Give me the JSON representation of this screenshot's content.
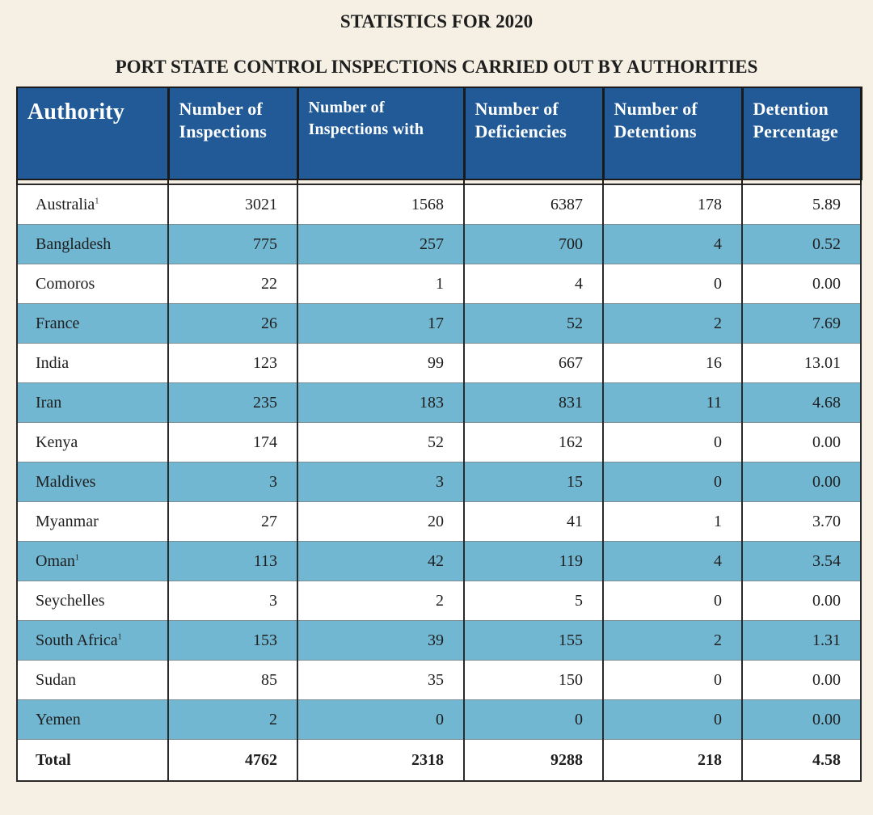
{
  "title": "STATISTICS FOR 2020",
  "subtitle": "PORT STATE CONTROL INSPECTIONS CARRIED OUT BY AUTHORITIES",
  "headers": [
    [
      "Authority"
    ],
    [
      "Number of",
      "Inspections"
    ],
    [
      "Number of",
      "Inspections with"
    ],
    [
      "Number of",
      "Deficiencies"
    ],
    [
      "Number of",
      "Detentions"
    ],
    [
      "Detention",
      "Percentage"
    ]
  ],
  "rows": [
    {
      "authority": "Australia",
      "note": "1",
      "inspections": "3021",
      "with_deficiencies": "1568",
      "deficiencies": "6387",
      "detentions": "178",
      "percentage": "5.89"
    },
    {
      "authority": "Bangladesh",
      "note": "",
      "inspections": "775",
      "with_deficiencies": "257",
      "deficiencies": "700",
      "detentions": "4",
      "percentage": "0.52"
    },
    {
      "authority": "Comoros",
      "note": "",
      "inspections": "22",
      "with_deficiencies": "1",
      "deficiencies": "4",
      "detentions": "0",
      "percentage": "0.00"
    },
    {
      "authority": "France",
      "note": "",
      "inspections": "26",
      "with_deficiencies": "17",
      "deficiencies": "52",
      "detentions": "2",
      "percentage": "7.69"
    },
    {
      "authority": "India",
      "note": "",
      "inspections": "123",
      "with_deficiencies": "99",
      "deficiencies": "667",
      "detentions": "16",
      "percentage": "13.01"
    },
    {
      "authority": "Iran",
      "note": "",
      "inspections": "235",
      "with_deficiencies": "183",
      "deficiencies": "831",
      "detentions": "11",
      "percentage": "4.68"
    },
    {
      "authority": "Kenya",
      "note": "",
      "inspections": "174",
      "with_deficiencies": "52",
      "deficiencies": "162",
      "detentions": "0",
      "percentage": "0.00"
    },
    {
      "authority": "Maldives",
      "note": "",
      "inspections": "3",
      "with_deficiencies": "3",
      "deficiencies": "15",
      "detentions": "0",
      "percentage": "0.00"
    },
    {
      "authority": "Myanmar",
      "note": "",
      "inspections": "27",
      "with_deficiencies": "20",
      "deficiencies": "41",
      "detentions": "1",
      "percentage": "3.70"
    },
    {
      "authority": "Oman",
      "note": "1",
      "inspections": "113",
      "with_deficiencies": "42",
      "deficiencies": "119",
      "detentions": "4",
      "percentage": "3.54"
    },
    {
      "authority": "Seychelles",
      "note": "",
      "inspections": "3",
      "with_deficiencies": "2",
      "deficiencies": "5",
      "detentions": "0",
      "percentage": "0.00"
    },
    {
      "authority": "South Africa",
      "note": "1",
      "inspections": "153",
      "with_deficiencies": "39",
      "deficiencies": "155",
      "detentions": "2",
      "percentage": "1.31"
    },
    {
      "authority": "Sudan",
      "note": "",
      "inspections": "85",
      "with_deficiencies": "35",
      "deficiencies": "150",
      "detentions": "0",
      "percentage": "0.00"
    },
    {
      "authority": "Yemen",
      "note": "",
      "inspections": "2",
      "with_deficiencies": "0",
      "deficiencies": "0",
      "detentions": "0",
      "percentage": "0.00"
    }
  ],
  "total": {
    "authority": "Total",
    "inspections": "4762",
    "with_deficiencies": "2318",
    "deficiencies": "9288",
    "detentions": "218",
    "percentage": "4.58"
  },
  "colors": {
    "header_bg": "#215a97",
    "row_blue": "#72b7d1",
    "row_light": "#ffffff",
    "page_bg": "#f5f0e3"
  }
}
